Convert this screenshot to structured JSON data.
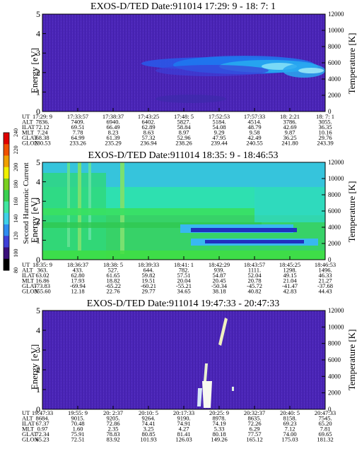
{
  "colorbar": {
    "label": "Second Harmonic Current",
    "ticks": [
      "80",
      "100",
      "120",
      "140",
      "160",
      "180",
      "200",
      "220",
      "240"
    ],
    "colors": [
      "#000000",
      "#3a0f7a",
      "#3f3fd8",
      "#2f8cf0",
      "#3fd0e8",
      "#40e6a0",
      "#3ad050",
      "#7ad020",
      "#f0f000",
      "#f0a000",
      "#f05000",
      "#e00000"
    ]
  },
  "row_labels": [
    "UT",
    "ALT",
    "ILAT",
    "MLT",
    "GLAT",
    "GLON"
  ],
  "chart_data": [
    {
      "type": "heatmap",
      "title": "EXOS-D/TED   Date:911014  17:29: 9 - 18: 7: 1",
      "ylabel": "Energy [eV]",
      "y2label": "Temperature [K]",
      "ylim": [
        0,
        5
      ],
      "y2lim": [
        0,
        12000
      ],
      "yticks": [
        "0",
        "1",
        "2",
        "3",
        "4",
        "5"
      ],
      "y2ticks": [
        "0",
        "2000",
        "4000",
        "6000",
        "8000",
        "10000",
        "12000"
      ],
      "columns": [
        [
          "17:29: 9",
          "7836.",
          "72.12",
          "7.24",
          "68.38",
          "230.53"
        ],
        [
          "17:33:57",
          "7409.",
          "69.51",
          "7.78",
          "64.99",
          "233.26"
        ],
        [
          "17:38:37",
          "6940.",
          "66.49",
          "8.23",
          "61.39",
          "235.29"
        ],
        [
          "17:43:25",
          "6402.",
          "62.89",
          "8.63",
          "57.32",
          "236.94"
        ],
        [
          "17:48: 5",
          "5827.",
          "58.84",
          "8.97",
          "52.96",
          "238.26"
        ],
        [
          "17:52:53",
          "5184.",
          "54.08",
          "9.29",
          "47.95",
          "239.44"
        ],
        [
          "17:57:33",
          "4514.",
          "48.79",
          "9.58",
          "42.49",
          "240.55"
        ],
        [
          "18: 2:21",
          "3786.",
          "42.69",
          "9.87",
          "36.25",
          "241.80"
        ],
        [
          "18: 7: 1",
          "3055.",
          "36.35",
          "10.16",
          "29.76",
          "243.39"
        ]
      ]
    },
    {
      "type": "heatmap",
      "title": "EXOS-D/TED   Date:911014  18:35: 9 - 18:46:53",
      "ylabel": "Energy [eV]",
      "y2label": "Temperature [K]",
      "ylim": [
        0,
        5
      ],
      "y2lim": [
        0,
        12000
      ],
      "yticks": [
        "0",
        "1",
        "2",
        "3",
        "4",
        "5"
      ],
      "y2ticks": [
        "0",
        "2000",
        "4000",
        "6000",
        "8000",
        "10000",
        "12000"
      ],
      "columns": [
        [
          "18:35: 9",
          "363.",
          "63.02",
          "16.86",
          "-73.83",
          "355.60"
        ],
        [
          "18:36:37",
          "433.",
          "62.80",
          "17.93",
          "-69.94",
          "12.18"
        ],
        [
          "18:38: 5",
          "527.",
          "61.65",
          "18.82",
          "-65.22",
          "22.76"
        ],
        [
          "18:39:33",
          "644.",
          "59.82",
          "19.51",
          "-60.21",
          "29.77"
        ],
        [
          "18:41: 1",
          "782.",
          "57.51",
          "20.04",
          "-55.21",
          "34.65"
        ],
        [
          "18:42:29",
          "939.",
          "54.87",
          "20.45",
          "-50.34",
          "38.18"
        ],
        [
          "18:43:57",
          "1111.",
          "52.04",
          "20.78",
          "-45.72",
          "40.82"
        ],
        [
          "18:45:25",
          "1298.",
          "49.15",
          "21.04",
          "-41.47",
          "42.83"
        ],
        [
          "18:46:53",
          "1496.",
          "46.33",
          "21.27",
          "-37.68",
          "44.43"
        ]
      ]
    },
    {
      "type": "heatmap",
      "title": "EXOS-D/TED   Date:911014  19:47:33 - 20:47:33",
      "ylabel": "Energy [eV]",
      "y2label": "Temperature [K]",
      "ylim": [
        0,
        5
      ],
      "y2lim": [
        0,
        12000
      ],
      "yticks": [
        "0",
        "1",
        "2",
        "3",
        "4",
        "5"
      ],
      "y2ticks": [
        "0",
        "2000",
        "4000",
        "6000",
        "8000",
        "10000",
        "12000"
      ],
      "columns": [
        [
          "19:47:33",
          "8684.",
          "67.37",
          "0.97",
          "72.34",
          "65.23"
        ],
        [
          "19:55: 9",
          "9015.",
          "70.48",
          "1.60",
          "75.91",
          "72.51"
        ],
        [
          "20: 2:37",
          "9205.",
          "72.86",
          "2.35",
          "78.83",
          "83.92"
        ],
        [
          "20:10: 5",
          "9264.",
          "74.41",
          "3.25",
          "80.85",
          "101.93"
        ],
        [
          "20:17:33",
          "9190.",
          "74.91",
          "4.27",
          "81.41",
          "126.03"
        ],
        [
          "20:25: 9",
          "8978.",
          "74.19",
          "5.33",
          "80.18",
          "149.26"
        ],
        [
          "20:32:37",
          "8635.",
          "72.26",
          "6.29",
          "77.57",
          "165.12"
        ],
        [
          "20:40: 5",
          "8158.",
          "69.23",
          "7.12",
          "74.00",
          "175.03"
        ],
        [
          "20:47:33",
          "7545.",
          "65.20",
          "7.81",
          "69.65",
          "181.32"
        ]
      ]
    }
  ]
}
